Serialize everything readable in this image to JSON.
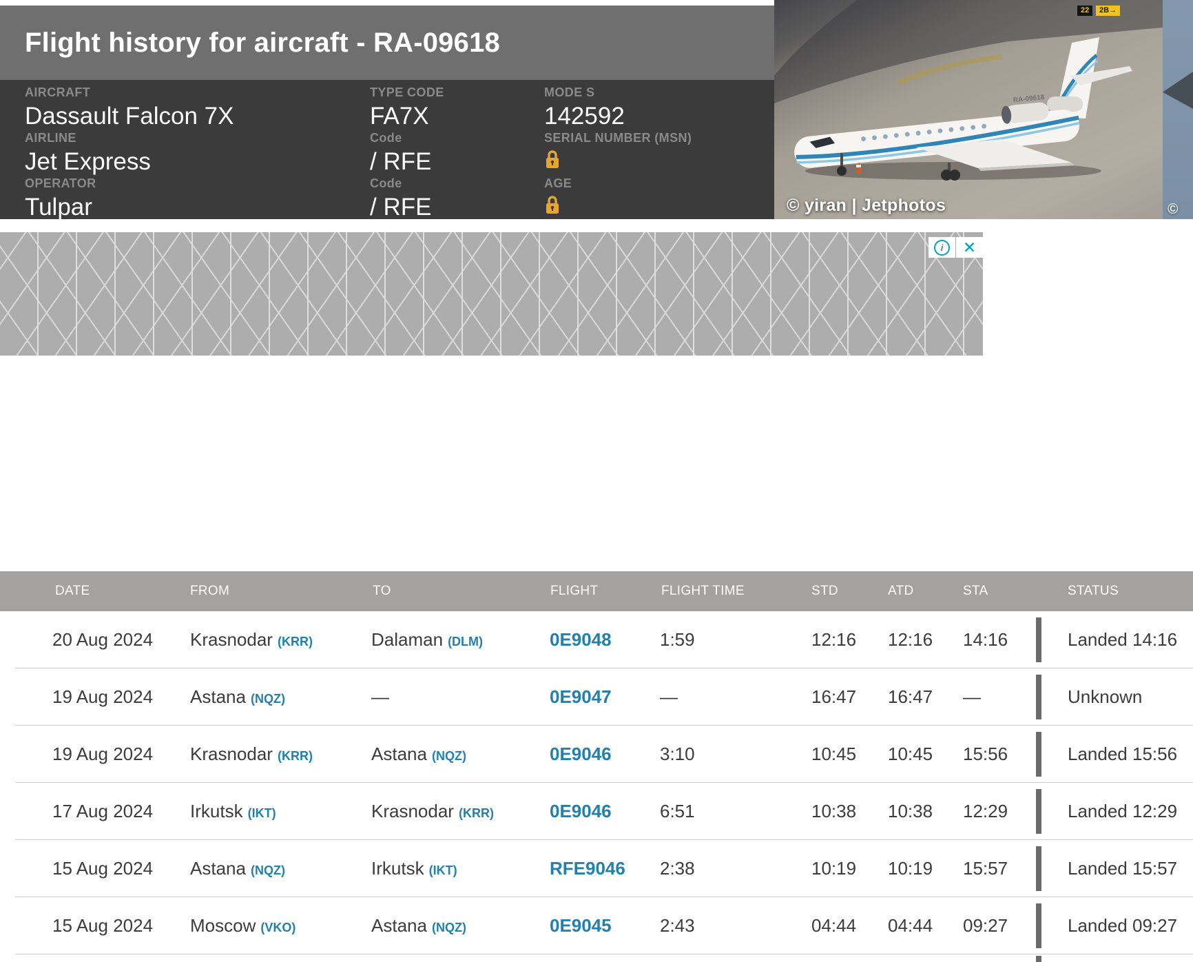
{
  "header": {
    "title": "Flight history for aircraft - RA-09618",
    "info": {
      "aircraft": {
        "label": "AIRCRAFT",
        "value": "Dassault Falcon 7X"
      },
      "airline": {
        "label": "AIRLINE",
        "value": "Jet Express"
      },
      "operator": {
        "label": "OPERATOR",
        "value": "Tulpar"
      },
      "type_code": {
        "label": "TYPE CODE",
        "value": "FA7X"
      },
      "airline_code": {
        "label": "Code",
        "value": "/ RFE"
      },
      "operator_code": {
        "label": "Code",
        "value": "/ RFE"
      },
      "mode_s": {
        "label": "MODE S",
        "value": "142592"
      },
      "serial_number": {
        "label": "SERIAL NUMBER (MSN)",
        "value_locked": true
      },
      "age": {
        "label": "AGE",
        "value_locked": true
      }
    },
    "photo": {
      "credit": "© yiran | Jetphotos",
      "registration": "RA-09618",
      "taxiway_sign_left": "22",
      "taxiway_sign_right": "2B→"
    },
    "photo_secondary": {
      "copyright": "©"
    }
  },
  "ad": {
    "info_symbol": "i",
    "close_symbol": "✕"
  },
  "table": {
    "columns": [
      "DATE",
      "FROM",
      "TO",
      "FLIGHT",
      "FLIGHT TIME",
      "STD",
      "ATD",
      "STA",
      "STATUS"
    ],
    "rows": [
      {
        "date": "20 Aug 2024",
        "from_city": "Krasnodar",
        "from_code": "(KRR)",
        "to_city": "Dalaman",
        "to_code": "(DLM)",
        "flight": "0E9048",
        "flight_time": "1:59",
        "std": "12:16",
        "atd": "12:16",
        "sta": "14:16",
        "status": "Landed 14:16"
      },
      {
        "date": "19 Aug 2024",
        "from_city": "Astana",
        "from_code": "(NQZ)",
        "to_city": "—",
        "to_code": "",
        "flight": "0E9047",
        "flight_time": "—",
        "std": "16:47",
        "atd": "16:47",
        "sta": "—",
        "status": "Unknown"
      },
      {
        "date": "19 Aug 2024",
        "from_city": "Krasnodar",
        "from_code": "(KRR)",
        "to_city": "Astana",
        "to_code": "(NQZ)",
        "flight": "0E9046",
        "flight_time": "3:10",
        "std": "10:45",
        "atd": "10:45",
        "sta": "15:56",
        "status": "Landed 15:56"
      },
      {
        "date": "17 Aug 2024",
        "from_city": "Irkutsk",
        "from_code": "(IKT)",
        "to_city": "Krasnodar",
        "to_code": "(KRR)",
        "flight": "0E9046",
        "flight_time": "6:51",
        "std": "10:38",
        "atd": "10:38",
        "sta": "12:29",
        "status": "Landed 12:29"
      },
      {
        "date": "15 Aug 2024",
        "from_city": "Astana",
        "from_code": "(NQZ)",
        "to_city": "Irkutsk",
        "to_code": "(IKT)",
        "flight": "RFE9046",
        "flight_time": "2:38",
        "std": "10:19",
        "atd": "10:19",
        "sta": "15:57",
        "status": "Landed 15:57"
      },
      {
        "date": "15 Aug 2024",
        "from_city": "Moscow",
        "from_code": "(VKO)",
        "to_city": "Astana",
        "to_code": "(NQZ)",
        "flight": "0E9045",
        "flight_time": "2:43",
        "std": "04:44",
        "atd": "04:44",
        "sta": "09:27",
        "status": "Landed 09:27"
      }
    ]
  },
  "colors": {
    "title_bar": "#6f6f6f",
    "info_panel": "#3b3b3b",
    "info_label": "#8a8a8a",
    "accent_link": "#2180ad",
    "lock_icon": "#e7a72f",
    "table_header_bg": "#a6a1a1",
    "status_marker": "#6b6b6b",
    "adchoices_teal": "#00a3b4",
    "ad_background": "#adadad",
    "row_separator": "#cbcbcb"
  }
}
